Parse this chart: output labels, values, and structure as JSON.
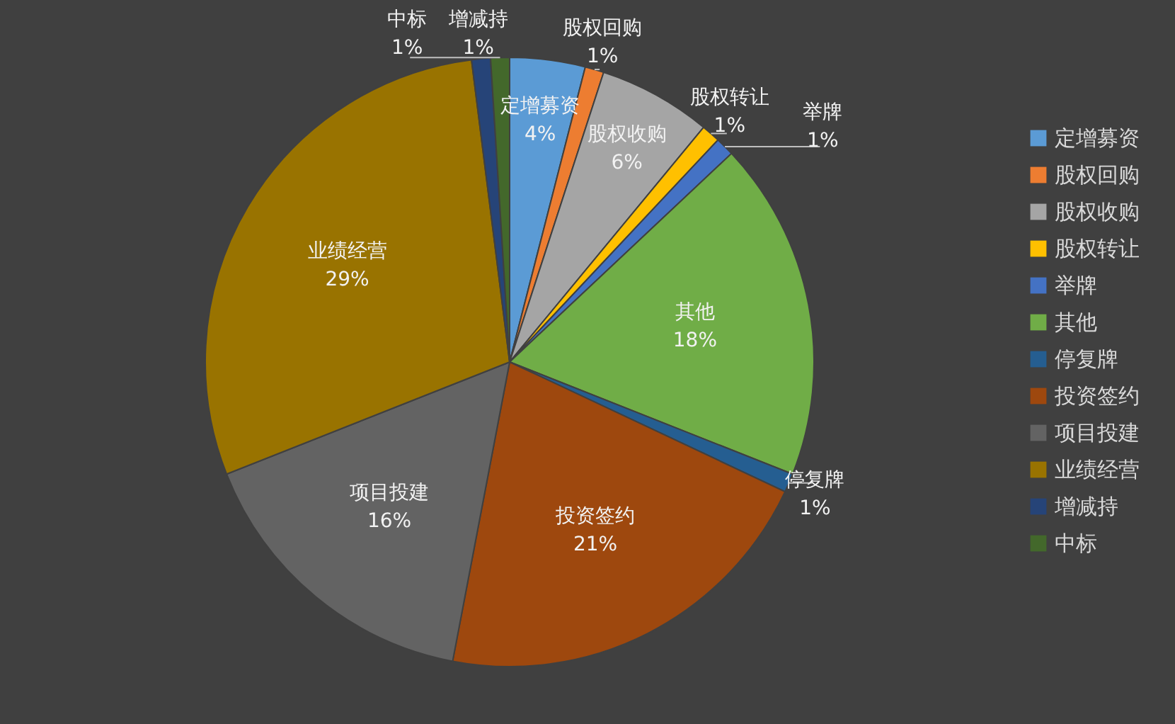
{
  "chart_data": {
    "type": "pie",
    "categories": [
      "定增募资",
      "股权回购",
      "股权收购",
      "股权转让",
      "举牌",
      "其他",
      "停复牌",
      "投资签约",
      "项目投建",
      "业绩经营",
      "增减持",
      "中标"
    ],
    "values": [
      4,
      1,
      6,
      1,
      1,
      18,
      1,
      21,
      16,
      29,
      1,
      1
    ],
    "value_labels": [
      "4%",
      "1%",
      "6%",
      "1%",
      "1%",
      "18%",
      "1%",
      "21%",
      "16%",
      "29%",
      "1%",
      "1%"
    ],
    "colors": [
      "#5b9bd5",
      "#ed7d31",
      "#a5a5a5",
      "#ffc000",
      "#4472c4",
      "#70ad47",
      "#255e91",
      "#9e480e",
      "#636363",
      "#997300",
      "#264478",
      "#43682b"
    ],
    "legend": "right"
  }
}
